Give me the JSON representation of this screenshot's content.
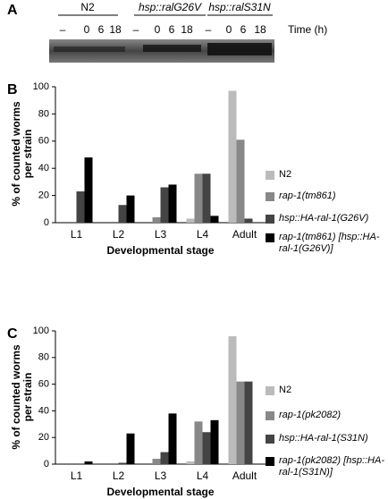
{
  "panel_a": {
    "label": "A",
    "strains": [
      "N2",
      "hsp::ralG26V",
      "hsp::ralS31N"
    ],
    "times": [
      "–",
      "0",
      "6",
      "18",
      "–",
      "0",
      "6",
      "18",
      "–",
      "0",
      "6",
      "18"
    ],
    "time_label": "Time (h)"
  },
  "chart_data": [
    {
      "type": "bar",
      "label": "B",
      "y_label": "% of counted worms per strain",
      "x_label": "Developmental stage",
      "categories": [
        "L1",
        "L2",
        "L3",
        "L4",
        "Adult"
      ],
      "series": [
        {
          "name": "N2",
          "color": "#bbbbbb",
          "values": [
            0,
            0,
            0,
            3,
            97
          ]
        },
        {
          "name": "rap-1(tm861)",
          "color": "#888888",
          "values": [
            0,
            0,
            4,
            36,
            61
          ]
        },
        {
          "name": "hsp::HA-ral-1(G26V)",
          "color": "#444444",
          "values": [
            23,
            13,
            26,
            36,
            3
          ]
        },
        {
          "name": "rap-1(tm861) [hsp::HA-ral-1(G26V)]",
          "color": "#000000",
          "values": [
            48,
            20,
            28,
            5,
            0
          ]
        }
      ],
      "ylim": [
        0,
        100
      ],
      "yticks": [
        0,
        20,
        40,
        60,
        80,
        100
      ]
    },
    {
      "type": "bar",
      "label": "C",
      "y_label": "% of counted worms per strain",
      "x_label": "Developmental stage",
      "categories": [
        "L1",
        "L2",
        "L3",
        "L4",
        "Adult"
      ],
      "series": [
        {
          "name": "N2",
          "color": "#bbbbbb",
          "values": [
            0,
            0,
            0,
            2,
            96
          ]
        },
        {
          "name": "rap-1(pk2082)",
          "color": "#888888",
          "values": [
            0,
            0,
            4,
            32,
            62
          ]
        },
        {
          "name": "hsp::HA-ral-1(S31N)",
          "color": "#444444",
          "values": [
            0,
            1,
            9,
            24,
            62
          ]
        },
        {
          "name": "rap-1(pk2082) [hsp::HA-ral-1(S31N)]",
          "color": "#000000",
          "values": [
            2,
            23,
            38,
            33,
            0
          ]
        }
      ],
      "ylim": [
        0,
        100
      ],
      "yticks": [
        0,
        20,
        40,
        60,
        80,
        100
      ]
    }
  ]
}
